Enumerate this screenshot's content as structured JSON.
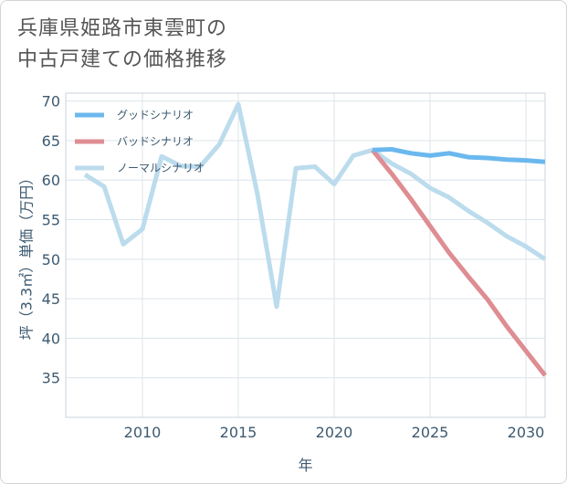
{
  "title_lines": [
    "兵庫県姫路市東雲町の",
    "中古戸建ての価格推移"
  ],
  "chart_data": {
    "type": "line",
    "title": "兵庫県姫路市東雲町の中古戸建ての価格推移",
    "xlabel": "年",
    "ylabel": "坪（3.3㎡）単価（万円）",
    "xlim": [
      2006,
      2031
    ],
    "ylim": [
      30,
      71
    ],
    "x_ticks": [
      2010,
      2015,
      2020,
      2025,
      2030
    ],
    "y_ticks": [
      35,
      40,
      45,
      50,
      55,
      60,
      65,
      70
    ],
    "legend_position": "top-left",
    "series": [
      {
        "name": "グッドシナリオ",
        "color": "#6bb8ee",
        "x": [
          2022,
          2023,
          2024,
          2025,
          2026,
          2027,
          2028,
          2029,
          2030,
          2031
        ],
        "values": [
          63.8,
          63.9,
          63.4,
          63.1,
          63.4,
          62.9,
          62.8,
          62.6,
          62.5,
          62.3
        ]
      },
      {
        "name": "バッドシナリオ",
        "color": "#de8d92",
        "x": [
          2022,
          2023,
          2024,
          2025,
          2026,
          2027,
          2028,
          2029,
          2030,
          2031
        ],
        "values": [
          63.8,
          60.8,
          57.6,
          54.2,
          50.8,
          47.8,
          44.9,
          41.5,
          38.4,
          35.3
        ]
      },
      {
        "name": "ノーマルシナリオ",
        "color": "#bcdced",
        "x": [
          2007,
          2008,
          2009,
          2010,
          2011,
          2012,
          2013,
          2014,
          2015,
          2016,
          2017,
          2018,
          2019,
          2020,
          2021,
          2022,
          2023,
          2024,
          2025,
          2026,
          2027,
          2028,
          2029,
          2030,
          2031
        ],
        "values": [
          60.7,
          59.2,
          51.9,
          53.8,
          63.0,
          61.8,
          61.7,
          64.5,
          69.6,
          58.2,
          44.0,
          61.5,
          61.7,
          59.5,
          63.1,
          63.8,
          62.1,
          60.8,
          59.0,
          57.8,
          56.1,
          54.6,
          52.9,
          51.6,
          50.0
        ]
      }
    ]
  }
}
